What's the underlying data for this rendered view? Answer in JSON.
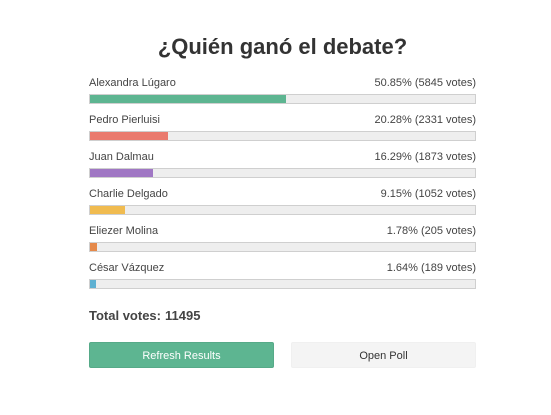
{
  "poll": {
    "title": "¿Quién ganó el debate?",
    "options": [
      {
        "name": "Alexandra Lúgaro",
        "stat": "50.85% (5845 votes)",
        "percent": 50.85,
        "color": "#5db591"
      },
      {
        "name": "Pedro Pierluisi",
        "stat": "20.28% (2331 votes)",
        "percent": 20.28,
        "color": "#ea7a6e"
      },
      {
        "name": "Juan Dalmau",
        "stat": "16.29% (1873 votes)",
        "percent": 16.29,
        "color": "#a077c4"
      },
      {
        "name": "Charlie Delgado",
        "stat": "9.15% (1052 votes)",
        "percent": 9.15,
        "color": "#f0bb50"
      },
      {
        "name": "Eliezer Molina",
        "stat": "1.78% (205 votes)",
        "percent": 1.78,
        "color": "#e5894a"
      },
      {
        "name": "César Vázquez",
        "stat": "1.64% (189 votes)",
        "percent": 1.64,
        "color": "#5fb1d2"
      }
    ],
    "total_label": "Total votes:",
    "total_value": "11495",
    "refresh_label": "Refresh Results",
    "open_label": "Open Poll"
  }
}
